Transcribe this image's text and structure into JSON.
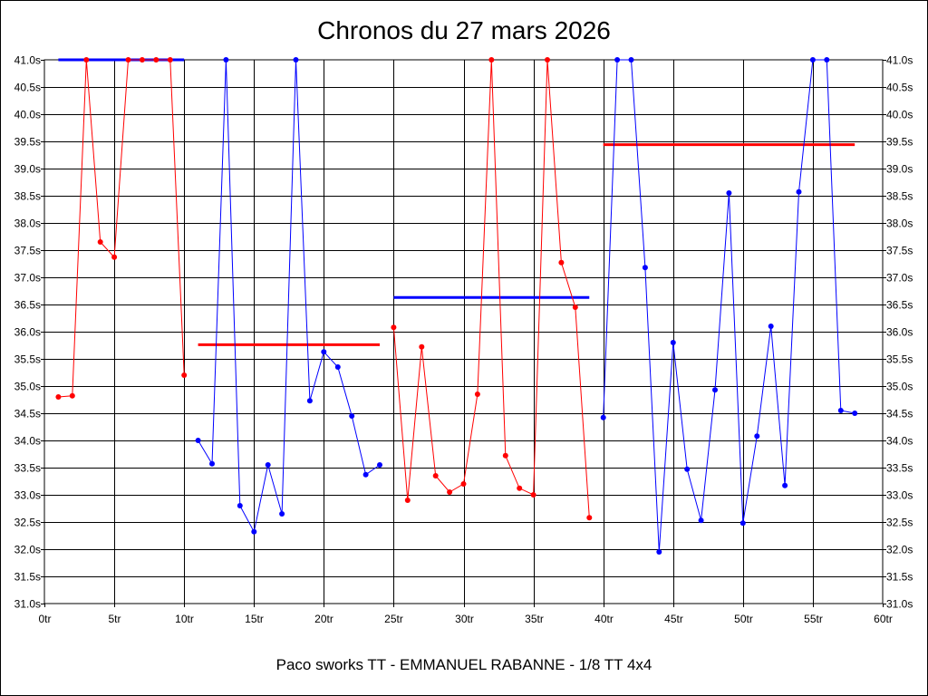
{
  "chart_data": {
    "type": "line",
    "title": "Chronos du 27 mars 2026",
    "subtitle": "Paco sworks TT - EMMANUEL RABANNE - 1/8 TT 4x4",
    "xlabel": "",
    "ylabel": "",
    "xlim": [
      0,
      60
    ],
    "ylim": [
      31.0,
      41.0
    ],
    "grid": true,
    "x_ticks": [
      "0tr",
      "5tr",
      "10tr",
      "15tr",
      "20tr",
      "25tr",
      "30tr",
      "35tr",
      "40tr",
      "45tr",
      "50tr",
      "55tr",
      "60tr"
    ],
    "y_ticks": [
      "31.0s",
      "31.5s",
      "32.0s",
      "32.5s",
      "33.0s",
      "33.5s",
      "34.0s",
      "34.5s",
      "35.0s",
      "35.5s",
      "36.0s",
      "36.5s",
      "37.0s",
      "37.5s",
      "38.0s",
      "38.5s",
      "39.0s",
      "39.5s",
      "40.0s",
      "40.5s",
      "41.0s"
    ],
    "series": [
      {
        "color": "#ff0000",
        "x": [
          1,
          2,
          3,
          4,
          5,
          6,
          7,
          8,
          9,
          10
        ],
        "values": [
          34.8,
          34.82,
          41.0,
          37.65,
          37.37,
          41.0,
          41.0,
          41.0,
          41.0,
          35.2
        ],
        "average": 41.0,
        "average_color": "#0000ff"
      },
      {
        "color": "#0000ff",
        "x": [
          11,
          12,
          13,
          14,
          15,
          16,
          17,
          18,
          19,
          20,
          21,
          22,
          23,
          24
        ],
        "values": [
          34.0,
          33.57,
          41.0,
          32.8,
          32.32,
          33.55,
          32.65,
          41.0,
          34.73,
          35.63,
          35.35,
          34.45,
          33.37,
          33.55
        ],
        "average": 35.76,
        "average_color": "#ff0000"
      },
      {
        "color": "#ff0000",
        "x": [
          25,
          26,
          27,
          28,
          29,
          30,
          31,
          32,
          33,
          34,
          35,
          36,
          37,
          38,
          39
        ],
        "values": [
          36.08,
          32.9,
          35.72,
          33.35,
          33.05,
          33.2,
          34.85,
          41.0,
          33.72,
          33.12,
          33.0,
          41.0,
          37.27,
          36.45,
          32.58
        ],
        "average": 36.63,
        "average_color": "#0000ff"
      },
      {
        "color": "#0000ff",
        "x": [
          40,
          41,
          42,
          43,
          44,
          45,
          46,
          47,
          48,
          49,
          50,
          51,
          52,
          53,
          54,
          55,
          56,
          57,
          58
        ],
        "values": [
          34.42,
          41.0,
          41.0,
          37.18,
          31.95,
          35.8,
          33.47,
          32.53,
          34.93,
          38.55,
          32.48,
          34.08,
          36.1,
          33.17,
          38.57,
          41.0,
          41.0,
          34.55,
          34.5
        ],
        "average": 39.44,
        "average_color": "#ff0000"
      }
    ]
  }
}
